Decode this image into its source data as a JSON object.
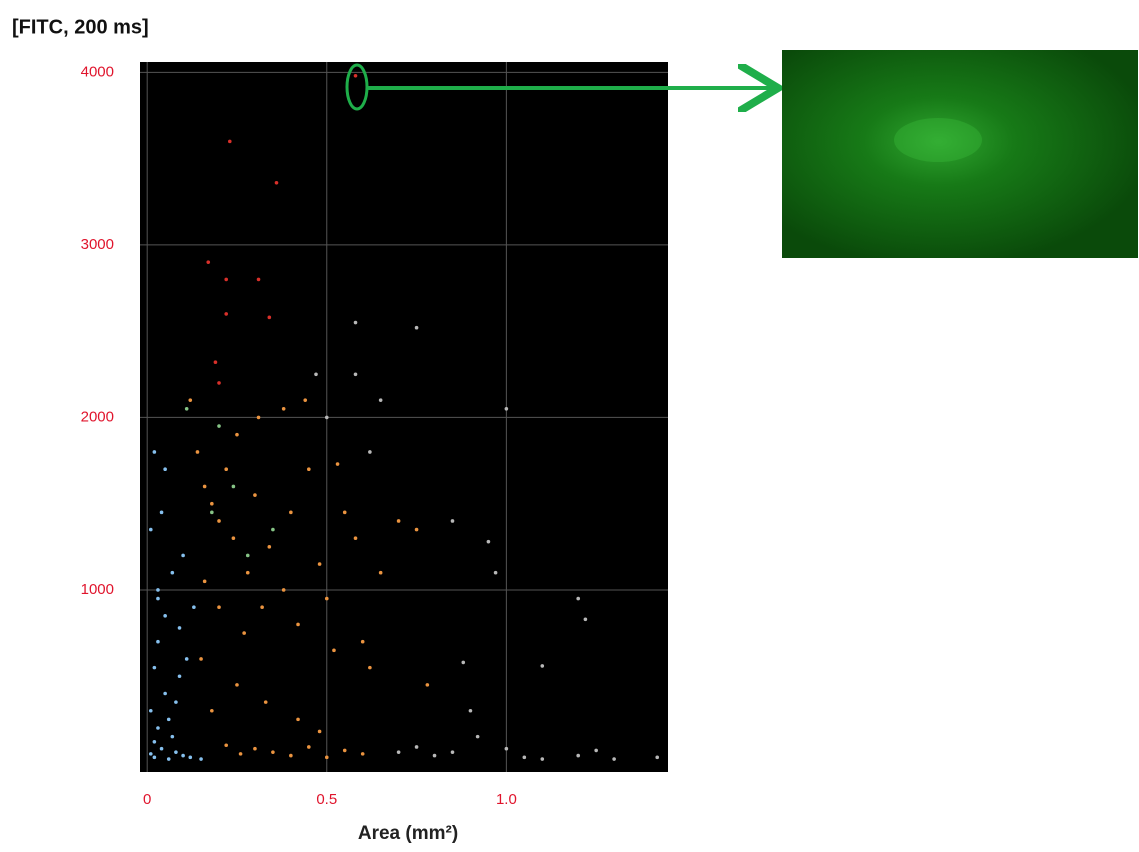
{
  "chart_data": {
    "type": "scatter",
    "title": "[FITC, 200 ms]",
    "x_label": "Area (mm²)",
    "xlim": [
      -0.02,
      1.45
    ],
    "ylim": [
      -55,
      4060
    ],
    "xticks": [
      0,
      0.5,
      {
        "value": 1,
        "label": "1.0"
      }
    ],
    "yticks": [
      1000,
      2000,
      3000,
      4000
    ],
    "grid": true,
    "series": [
      {
        "color": "#86c0ee",
        "x": [
          0.01,
          0.02,
          0.03,
          0.01,
          0.04,
          0.05,
          0.02,
          0.03,
          0.06,
          0.07,
          0.08,
          0.01,
          0.03,
          0.05,
          0.09,
          0.1,
          0.04,
          0.02,
          0.06,
          0.1,
          0.12,
          0.15,
          0.03,
          0.07,
          0.11,
          0.05,
          0.02,
          0.08,
          0.09,
          0.13
        ],
        "values": [
          50,
          120,
          200,
          300,
          80,
          400,
          550,
          700,
          250,
          150,
          60,
          1350,
          1000,
          850,
          780,
          1200,
          1450,
          30,
          20,
          40,
          30,
          20,
          950,
          1100,
          600,
          1700,
          1800,
          350,
          500,
          900
        ]
      },
      {
        "color": "#eb9440",
        "x": [
          0.14,
          0.16,
          0.18,
          0.2,
          0.22,
          0.24,
          0.25,
          0.28,
          0.3,
          0.32,
          0.34,
          0.38,
          0.4,
          0.42,
          0.45,
          0.48,
          0.5,
          0.52,
          0.55,
          0.58,
          0.6,
          0.62,
          0.65,
          0.7,
          0.75,
          0.78,
          0.15,
          0.18,
          0.2,
          0.22,
          0.26,
          0.3,
          0.35,
          0.4,
          0.45,
          0.5,
          0.55,
          0.6,
          0.25,
          0.33,
          0.42,
          0.48,
          0.16,
          0.27,
          0.12,
          0.31,
          0.38,
          0.44,
          0.53
        ],
        "values": [
          1800,
          1600,
          1500,
          1400,
          1700,
          1300,
          1900,
          1100,
          1550,
          900,
          1250,
          1000,
          1450,
          800,
          1700,
          1150,
          950,
          650,
          1450,
          1300,
          700,
          550,
          1100,
          1400,
          1350,
          450,
          600,
          300,
          900,
          100,
          50,
          80,
          60,
          40,
          90,
          30,
          70,
          50,
          450,
          350,
          250,
          180,
          1050,
          750,
          2100,
          2000,
          2050,
          2100,
          1730
        ]
      },
      {
        "color": "#d9302a",
        "x": [
          0.23,
          0.36,
          0.17,
          0.22,
          0.22,
          0.19,
          0.2,
          0.58,
          0.31,
          0.34
        ],
        "values": [
          3600,
          3360,
          2900,
          2800,
          2600,
          2320,
          2200,
          3980,
          2800,
          2580
        ]
      },
      {
        "color": "#86c486",
        "x": [
          0.11,
          0.2,
          0.35,
          0.24,
          0.18,
          0.28
        ],
        "values": [
          2050,
          1950,
          1350,
          1600,
          1450,
          1200
        ]
      },
      {
        "color": "#b8b8b8",
        "x": [
          0.65,
          0.75,
          0.85,
          1.0,
          0.95,
          0.97,
          1.2,
          1.22,
          1.1,
          0.88,
          0.9,
          0.92,
          0.8,
          0.85,
          1.0,
          1.05,
          1.1,
          1.2,
          1.25,
          1.3,
          1.42,
          0.7,
          0.75,
          0.58,
          0.58,
          0.62,
          0.5,
          0.47
        ],
        "values": [
          2100,
          2520,
          1400,
          2050,
          1280,
          1100,
          950,
          830,
          560,
          580,
          300,
          150,
          40,
          60,
          80,
          30,
          20,
          40,
          70,
          20,
          30,
          60,
          90,
          2550,
          2250,
          1800,
          2000,
          2250
        ]
      }
    ]
  }
}
